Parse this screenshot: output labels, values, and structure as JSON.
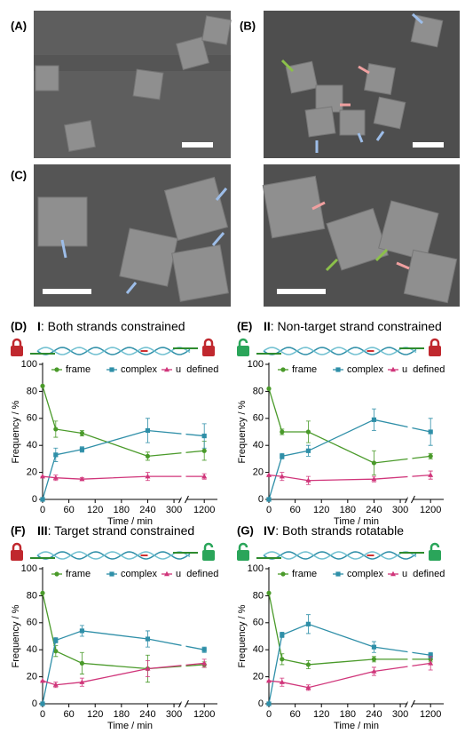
{
  "panels": [
    {
      "label": "(A)"
    },
    {
      "label": "(B)"
    },
    {
      "label": "(C)"
    }
  ],
  "chart_data": [
    {
      "type": "line",
      "label": "(D)",
      "numeral": "I",
      "title": ": Both strands constrained",
      "xlabel": "Time / min",
      "ylabel": "Frequency / %",
      "x": [
        0,
        30,
        90,
        240,
        1200
      ],
      "xlim": [
        0,
        1230
      ],
      "xbreak": [
        315,
        1160
      ],
      "xticks": [
        0,
        60,
        120,
        180,
        240,
        300,
        1200
      ],
      "ylim": [
        0,
        100
      ],
      "yticks": [
        0,
        20,
        40,
        60,
        80,
        100
      ],
      "series": [
        {
          "name": "frame",
          "color": "#4a9a2a",
          "marker": "circle",
          "values": [
            84,
            52,
            49,
            32,
            36
          ],
          "errors": [
            0,
            6,
            2,
            3,
            7
          ]
        },
        {
          "name": "complex",
          "color": "#2f8fa8",
          "marker": "square",
          "values": [
            0,
            33,
            37,
            51,
            47
          ],
          "errors": [
            0,
            5,
            2,
            9,
            9
          ]
        },
        {
          "name": "undefined",
          "color": "#d0357a",
          "marker": "triangle",
          "values": [
            17,
            16,
            15,
            17,
            17
          ],
          "errors": [
            0,
            2,
            1,
            3,
            2
          ]
        }
      ]
    },
    {
      "type": "line",
      "label": "(E)",
      "numeral": "II",
      "title": ": Non-target strand constrained",
      "xlabel": "Time / min",
      "ylabel": "Frequency / %",
      "x": [
        0,
        30,
        90,
        240,
        1200
      ],
      "xlim": [
        0,
        1230
      ],
      "xbreak": [
        315,
        1160
      ],
      "xticks": [
        0,
        60,
        120,
        180,
        240,
        300,
        1200
      ],
      "ylim": [
        0,
        100
      ],
      "yticks": [
        0,
        20,
        40,
        60,
        80,
        100
      ],
      "series": [
        {
          "name": "frame",
          "color": "#4a9a2a",
          "marker": "circle",
          "values": [
            82,
            50,
            50,
            27,
            32
          ],
          "errors": [
            0,
            2,
            8,
            9,
            2
          ]
        },
        {
          "name": "complex",
          "color": "#2f8fa8",
          "marker": "square",
          "values": [
            0,
            32,
            36,
            59,
            50
          ],
          "errors": [
            0,
            2,
            4,
            8,
            10
          ]
        },
        {
          "name": "undefined",
          "color": "#d0357a",
          "marker": "triangle",
          "values": [
            18,
            17,
            14,
            15,
            18
          ],
          "errors": [
            0,
            3,
            3,
            2,
            3
          ]
        }
      ]
    },
    {
      "type": "line",
      "label": "(F)",
      "numeral": "III",
      "title": ": Target strand constrained",
      "xlabel": "Time / min",
      "ylabel": "Frequency / %",
      "x": [
        0,
        30,
        90,
        240,
        1200
      ],
      "xlim": [
        0,
        1230
      ],
      "xbreak": [
        315,
        1160
      ],
      "xticks": [
        0,
        60,
        120,
        180,
        240,
        300,
        1200
      ],
      "ylim": [
        0,
        100
      ],
      "yticks": [
        0,
        20,
        40,
        60,
        80,
        100
      ],
      "series": [
        {
          "name": "frame",
          "color": "#4a9a2a",
          "marker": "circle",
          "values": [
            82,
            39,
            30,
            26,
            29
          ],
          "errors": [
            0,
            4,
            8,
            10,
            2
          ]
        },
        {
          "name": "complex",
          "color": "#2f8fa8",
          "marker": "square",
          "values": [
            0,
            47,
            54,
            48,
            40
          ],
          "errors": [
            0,
            2,
            4,
            6,
            2
          ]
        },
        {
          "name": "undefined",
          "color": "#d0357a",
          "marker": "triangle",
          "values": [
            17,
            14,
            16,
            26,
            30
          ],
          "errors": [
            0,
            2,
            3,
            6,
            3
          ]
        }
      ]
    },
    {
      "type": "line",
      "label": "(G)",
      "numeral": "IV",
      "title": ": Both strands rotatable",
      "xlabel": "Time / min",
      "ylabel": "Frequency / %",
      "x": [
        0,
        30,
        90,
        240,
        1200
      ],
      "xlim": [
        0,
        1230
      ],
      "xbreak": [
        315,
        1160
      ],
      "xticks": [
        0,
        60,
        120,
        180,
        240,
        300,
        1200
      ],
      "ylim": [
        0,
        100
      ],
      "yticks": [
        0,
        20,
        40,
        60,
        80,
        100
      ],
      "series": [
        {
          "name": "frame",
          "color": "#4a9a2a",
          "marker": "circle",
          "values": [
            82,
            33,
            29,
            33,
            33
          ],
          "errors": [
            0,
            4,
            3,
            2,
            2
          ]
        },
        {
          "name": "complex",
          "color": "#2f8fa8",
          "marker": "square",
          "values": [
            0,
            51,
            59,
            42,
            36
          ],
          "errors": [
            0,
            2,
            7,
            4,
            2
          ]
        },
        {
          "name": "undefined",
          "color": "#d0357a",
          "marker": "triangle",
          "values": [
            17,
            16,
            12,
            24,
            30
          ],
          "errors": [
            0,
            3,
            2,
            3,
            5
          ]
        }
      ]
    }
  ]
}
